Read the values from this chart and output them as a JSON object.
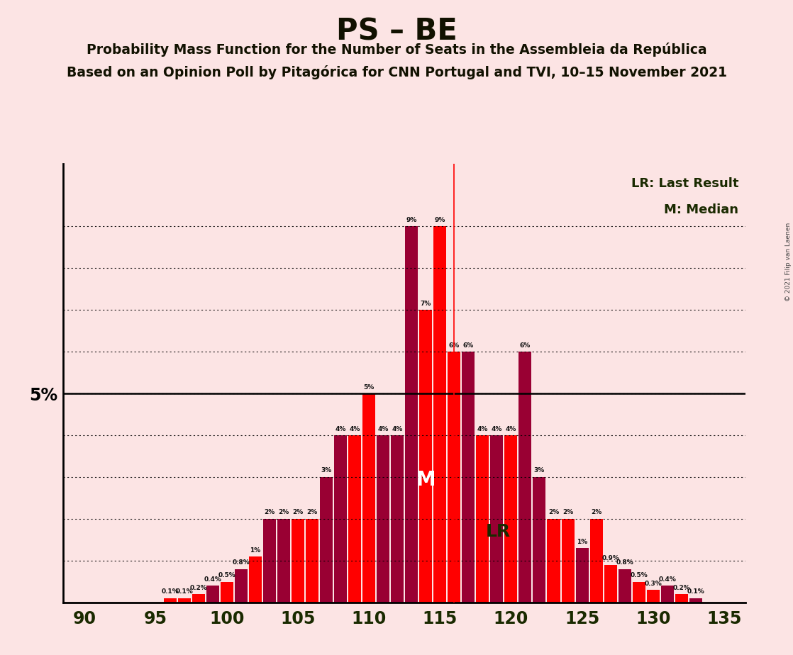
{
  "title": "PS – BE",
  "subtitle1": "Probability Mass Function for the Number of Seats in the Assembleia da República",
  "subtitle2": "Based on an Opinion Poll by Pitagórica for CNN Portugal and TVI, 10–15 November 2021",
  "watermark": "© 2021 Filip van Laenen",
  "legend_lr": "LR: Last Result",
  "legend_m": "M: Median",
  "background_color": "#fce4e4",
  "bar_color_dark": "#990033",
  "bar_color_bright": "#ff0000",
  "seats": [
    90,
    91,
    92,
    93,
    94,
    95,
    96,
    97,
    98,
    99,
    100,
    101,
    102,
    103,
    104,
    105,
    106,
    107,
    108,
    109,
    110,
    111,
    112,
    113,
    114,
    115,
    116,
    117,
    118,
    119,
    120,
    121,
    122,
    123,
    124,
    125,
    126,
    127,
    128,
    129,
    130,
    131,
    132,
    133,
    134,
    135
  ],
  "probs": [
    0.0,
    0.0,
    0.0,
    0.0,
    0.0,
    0.0,
    0.1,
    0.1,
    0.2,
    0.4,
    0.5,
    0.8,
    1.1,
    2.0,
    2.0,
    2.0,
    2.0,
    3.0,
    4.0,
    4.0,
    5.0,
    4.0,
    4.0,
    9.0,
    7.0,
    9.0,
    6.0,
    6.0,
    4.0,
    4.0,
    4.0,
    6.0,
    3.0,
    2.0,
    2.0,
    1.3,
    2.0,
    0.9,
    0.8,
    0.5,
    0.3,
    0.4,
    0.2,
    0.1,
    0.0,
    0.0
  ],
  "bar_colors_pattern": [
    "bright",
    "bright",
    "bright",
    "bright",
    "bright",
    "bright",
    "bright",
    "bright",
    "bright",
    "dark",
    "bright",
    "dark",
    "bright",
    "dark",
    "dark",
    "bright",
    "bright",
    "dark",
    "dark",
    "bright",
    "bright",
    "dark",
    "dark",
    "dark",
    "bright",
    "bright",
    "bright",
    "dark",
    "bright",
    "dark",
    "bright",
    "dark",
    "dark",
    "bright",
    "bright",
    "dark",
    "bright",
    "bright",
    "dark",
    "bright",
    "bright",
    "dark",
    "bright",
    "dark",
    "bright",
    "bright"
  ],
  "median_seat": 114,
  "lr_seat": 116,
  "xlim": [
    88.5,
    136.5
  ],
  "ylim": [
    0,
    10.5
  ],
  "five_pct_line": 5.0,
  "xlabel_ticks": [
    90,
    95,
    100,
    105,
    110,
    115,
    120,
    125,
    130,
    135
  ],
  "ytick_5pct_label": "5%",
  "grid_levels": [
    1.0,
    2.0,
    3.0,
    4.0,
    5.0,
    6.0,
    7.0,
    8.0,
    9.0
  ]
}
